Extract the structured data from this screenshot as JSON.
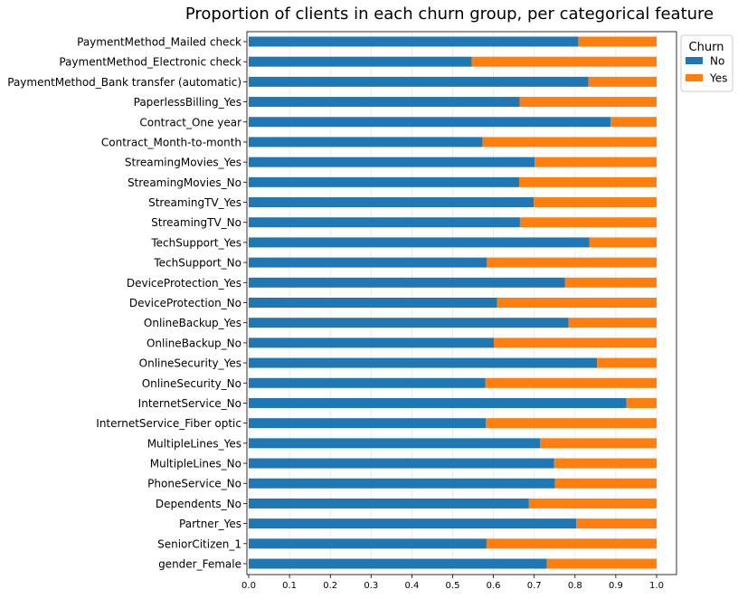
{
  "chart_data": {
    "type": "bar",
    "orientation": "horizontal",
    "stacked": true,
    "title": "Proportion of clients in each churn group, per categorical feature",
    "xlim": [
      0.0,
      1.0
    ],
    "xticks": [
      "0.0",
      "0.1",
      "0.2",
      "0.3",
      "0.4",
      "0.5",
      "0.6",
      "0.7",
      "0.8",
      "0.9",
      "1.0"
    ],
    "grid": "vertical",
    "legend": {
      "title": "Churn",
      "placement": "top-right outside"
    },
    "categories": [
      "PaymentMethod_Mailed check",
      "PaymentMethod_Electronic check",
      "PaymentMethod_Bank transfer (automatic)",
      "PaperlessBilling_Yes",
      "Contract_One year",
      "Contract_Month-to-month",
      "StreamingMovies_Yes",
      "StreamingMovies_No",
      "StreamingTV_Yes",
      "StreamingTV_No",
      "TechSupport_Yes",
      "TechSupport_No",
      "DeviceProtection_Yes",
      "DeviceProtection_No",
      "OnlineBackup_Yes",
      "OnlineBackup_No",
      "OnlineSecurity_Yes",
      "OnlineSecurity_No",
      "InternetService_No",
      "InternetService_Fiber optic",
      "MultipleLines_Yes",
      "MultipleLines_No",
      "PhoneService_No",
      "Dependents_No",
      "Partner_Yes",
      "SeniorCitizen_1",
      "gender_Female"
    ],
    "series": [
      {
        "name": "No",
        "color": "#1f77b4",
        "values": [
          0.808,
          0.547,
          0.833,
          0.664,
          0.887,
          0.573,
          0.701,
          0.663,
          0.699,
          0.665,
          0.835,
          0.584,
          0.775,
          0.609,
          0.784,
          0.601,
          0.854,
          0.58,
          0.926,
          0.581,
          0.714,
          0.749,
          0.751,
          0.687,
          0.803,
          0.583,
          0.731
        ]
      },
      {
        "name": "Yes",
        "color": "#ff7f0e",
        "values": [
          0.192,
          0.453,
          0.167,
          0.336,
          0.113,
          0.427,
          0.299,
          0.337,
          0.301,
          0.335,
          0.165,
          0.416,
          0.225,
          0.391,
          0.216,
          0.399,
          0.146,
          0.42,
          0.074,
          0.419,
          0.286,
          0.251,
          0.249,
          0.313,
          0.197,
          0.417,
          0.269
        ]
      }
    ]
  }
}
